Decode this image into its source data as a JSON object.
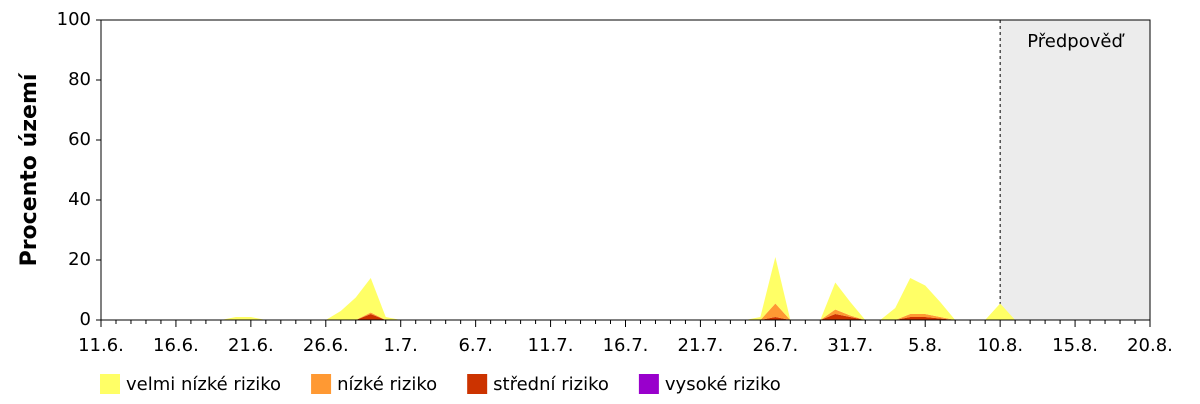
{
  "chart_data": {
    "type": "area",
    "y_label": "Procento území",
    "annotation": "Předpověď",
    "forecast_start": "10.8.",
    "categories": [
      "11.6.",
      null,
      null,
      null,
      null,
      "16.6.",
      null,
      null,
      null,
      null,
      "21.6.",
      null,
      null,
      null,
      null,
      "26.6.",
      null,
      null,
      null,
      null,
      "1.7.",
      null,
      null,
      null,
      null,
      "6.7.",
      null,
      null,
      null,
      null,
      "11.7.",
      null,
      null,
      null,
      null,
      "16.7.",
      null,
      null,
      null,
      null,
      "21.7.",
      null,
      null,
      null,
      null,
      "26.7.",
      null,
      null,
      null,
      null,
      "31.7.",
      null,
      null,
      null,
      null,
      "5.8.",
      null,
      null,
      null,
      null,
      "10.8.",
      null,
      null,
      null,
      null,
      "15.8.",
      null,
      null,
      null,
      null,
      "20.8."
    ],
    "series": [
      {
        "name": "velmi nízké riziko",
        "color": "#ffff66",
        "values": [
          0,
          0,
          0,
          0,
          0,
          0,
          0,
          0,
          0,
          1,
          1,
          0,
          0,
          0,
          0,
          0,
          3,
          7.5,
          11.5,
          1,
          0,
          0,
          0,
          0,
          0,
          0,
          0,
          0,
          0,
          0,
          0,
          0,
          0,
          0,
          0,
          0,
          0,
          0,
          0,
          0,
          0,
          0,
          0,
          0,
          1,
          15.5,
          0,
          0,
          0,
          9,
          4.5,
          0,
          0,
          4,
          12,
          9.5,
          5,
          0,
          0,
          0,
          5.5,
          0,
          0,
          0,
          0,
          0,
          0,
          0,
          0,
          0,
          0
        ]
      },
      {
        "name": "nízké riziko",
        "color": "#ff9933",
        "values": [
          0,
          0,
          0,
          0,
          0,
          0,
          0,
          0,
          0,
          0,
          0,
          0,
          0,
          0,
          0,
          0,
          0,
          0,
          0.5,
          0,
          0,
          0,
          0,
          0,
          0,
          0,
          0,
          0,
          0,
          0,
          0,
          0,
          0,
          0,
          0,
          0,
          0,
          0,
          0,
          0,
          0,
          0,
          0,
          0,
          0,
          4.5,
          0,
          0,
          0,
          1.5,
          0.5,
          0,
          0,
          0,
          1,
          1,
          0.5,
          0,
          0,
          0,
          0,
          0,
          0,
          0,
          0,
          0,
          0,
          0,
          0,
          0,
          0
        ]
      },
      {
        "name": "střední riziko",
        "color": "#cc3300",
        "values": [
          0,
          0,
          0,
          0,
          0,
          0,
          0,
          0,
          0,
          0,
          0,
          0,
          0,
          0,
          0,
          0,
          0,
          0,
          2,
          0,
          0,
          0,
          0,
          0,
          0,
          0,
          0,
          0,
          0,
          0,
          0,
          0,
          0,
          0,
          0,
          0,
          0,
          0,
          0,
          0,
          0,
          0,
          0,
          0,
          0,
          1,
          0,
          0,
          0,
          2,
          1,
          0,
          0,
          0,
          1,
          1,
          0.5,
          0,
          0,
          0,
          0,
          0,
          0,
          0,
          0,
          0,
          0,
          0,
          0,
          0,
          0
        ]
      },
      {
        "name": "vysoké riziko",
        "color": "#9900cc",
        "values": [
          0,
          0,
          0,
          0,
          0,
          0,
          0,
          0,
          0,
          0,
          0,
          0,
          0,
          0,
          0,
          0,
          0,
          0,
          0,
          0,
          0,
          0,
          0,
          0,
          0,
          0,
          0,
          0,
          0,
          0,
          0,
          0,
          0,
          0,
          0,
          0,
          0,
          0,
          0,
          0,
          0,
          0,
          0,
          0,
          0,
          0,
          0,
          0,
          0,
          0,
          0,
          0,
          0,
          0,
          0,
          0,
          0,
          0,
          0,
          0,
          0,
          0,
          0,
          0,
          0,
          0,
          0,
          0,
          0,
          0,
          0
        ]
      }
    ],
    "ylim": [
      0,
      100
    ],
    "yticks": [
      0,
      20,
      40,
      60,
      80,
      100
    ],
    "grid": false
  }
}
